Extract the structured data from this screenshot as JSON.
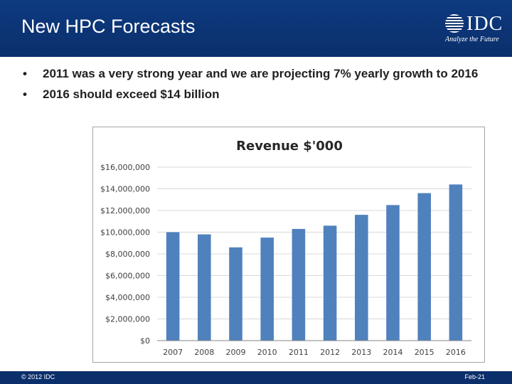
{
  "slide": {
    "title": "New HPC Forecasts",
    "logo_text": "IDC",
    "logo_tagline": "Analyze the Future",
    "bullets": [
      "2011 was a very strong year and we are projecting 7% yearly growth to 2016",
      "2016 should exceed $14 billion"
    ],
    "bullet_glyph": "•",
    "footer_left": "© 2012 IDC",
    "footer_right": "Feb-21",
    "colors": {
      "header": "#0b2f6b",
      "bar": "#4f81bd",
      "grid": "#d9d9d9"
    }
  },
  "chart_data": {
    "type": "bar",
    "title": "Revenue $'000",
    "categories": [
      "2007",
      "2008",
      "2009",
      "2010",
      "2011",
      "2012",
      "2013",
      "2014",
      "2015",
      "2016"
    ],
    "values": [
      10000000,
      9800000,
      8600000,
      9500000,
      10300000,
      10600000,
      11600000,
      12500000,
      13600000,
      14400000
    ],
    "ylim": [
      0,
      16000000
    ],
    "yticks": [
      "$0",
      "$2,000,000",
      "$4,000,000",
      "$6,000,000",
      "$8,000,000",
      "$10,000,000",
      "$12,000,000",
      "$14,000,000",
      "$16,000,000"
    ],
    "grid": true,
    "legend": "none"
  }
}
